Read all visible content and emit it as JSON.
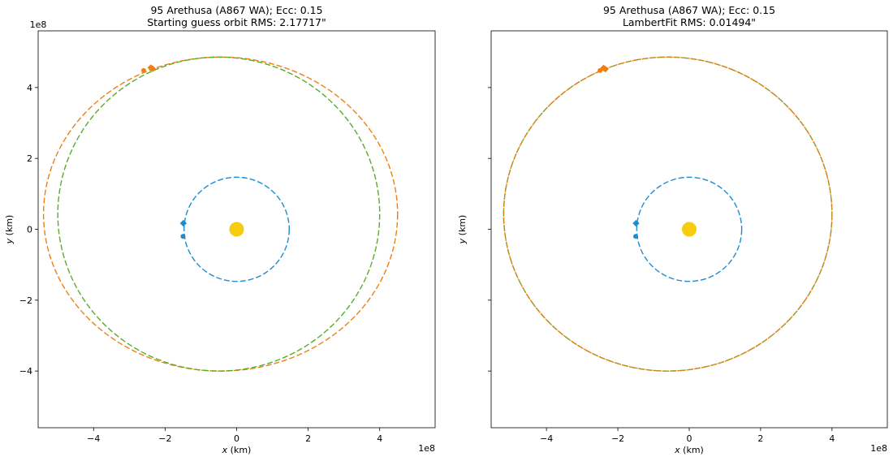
{
  "chart_data": [
    {
      "type": "scatter",
      "title": "95 Arethusa (A867 WA); Ecc: 0.15",
      "subtitle": "Starting guess orbit RMS: 2.17717\"",
      "xlabel_var": "x",
      "xlabel_unit": " (km)",
      "ylabel_var": "y",
      "ylabel_unit": " (km)",
      "xlim": [
        -5.55,
        5.55
      ],
      "ylim": [
        -5.6,
        5.6
      ],
      "offset_text": "1e8",
      "xticks": [
        -4,
        -2,
        0,
        2,
        4
      ],
      "yticks": [
        -4,
        -2,
        0,
        2,
        4
      ],
      "xtick_labels": [
        "−4",
        "−2",
        "0",
        "2",
        "4"
      ],
      "ytick_labels": [
        "−4",
        "−2",
        "0",
        "2",
        "4"
      ],
      "show_ytick_labels": true,
      "grid": false,
      "orbits": [
        {
          "center": [
            0.0,
            0.0
          ],
          "rx": 1.47,
          "ry": 1.47,
          "color": "#1f8bd0",
          "dash": "7,3"
        },
        {
          "center": [
            -0.45,
            0.43
          ],
          "rx": 4.95,
          "ry": 4.43,
          "color": "#f07f13",
          "dash": "7,3"
        },
        {
          "center": [
            -0.5,
            0.43
          ],
          "rx": 4.5,
          "ry": 4.43,
          "color": "#5aac2b",
          "dash": "7,3"
        }
      ],
      "sun": {
        "x": 0.0,
        "y": 0.0,
        "color": "#f7cc0e"
      },
      "markers": [
        {
          "x": -1.49,
          "y": 0.17,
          "shape": "diamond",
          "color": "#1f8bd0"
        },
        {
          "x": -1.5,
          "y": -0.2,
          "shape": "circle",
          "color": "#1f8bd0"
        },
        {
          "x": -2.6,
          "y": 4.48,
          "shape": "circle",
          "color": "#f07f13"
        },
        {
          "x": -2.4,
          "y": 4.56,
          "shape": "diamond",
          "color": "#f07f13"
        },
        {
          "x": -2.35,
          "y": 4.53,
          "shape": "diamond",
          "color": "#f07f13"
        }
      ]
    },
    {
      "type": "scatter",
      "title": "95 Arethusa (A867 WA); Ecc: 0.15",
      "subtitle": "LambertFit RMS: 0.01494\"",
      "xlabel_var": "x",
      "xlabel_unit": " (km)",
      "ylabel_var": "y",
      "ylabel_unit": " (km)",
      "xlim": [
        -5.55,
        5.55
      ],
      "ylim": [
        -5.6,
        5.6
      ],
      "offset_text": "1e8",
      "xticks": [
        -4,
        -2,
        0,
        2,
        4
      ],
      "yticks": [
        -4,
        -2,
        0,
        2,
        4
      ],
      "xtick_labels": [
        "−4",
        "−2",
        "0",
        "2",
        "4"
      ],
      "ytick_labels": [],
      "show_ytick_labels": false,
      "grid": false,
      "orbits": [
        {
          "center": [
            0.0,
            0.0
          ],
          "rx": 1.47,
          "ry": 1.47,
          "color": "#1f8bd0",
          "dash": "7,3"
        },
        {
          "center": [
            -0.6,
            0.43
          ],
          "rx": 4.6,
          "ry": 4.43,
          "color": "#5aac2b",
          "dash": "7,3"
        },
        {
          "center": [
            -0.6,
            0.43
          ],
          "rx": 4.6,
          "ry": 4.43,
          "color": "#f07f13",
          "dash": "2,1"
        }
      ],
      "sun": {
        "x": 0.0,
        "y": 0.0,
        "color": "#f7cc0e"
      },
      "markers": [
        {
          "x": -1.49,
          "y": 0.17,
          "shape": "diamond",
          "color": "#1f8bd0"
        },
        {
          "x": -1.5,
          "y": -0.2,
          "shape": "circle",
          "color": "#1f8bd0"
        },
        {
          "x": -2.5,
          "y": 4.48,
          "shape": "circle",
          "color": "#f07f13"
        },
        {
          "x": -2.4,
          "y": 4.55,
          "shape": "diamond",
          "color": "#f07f13"
        },
        {
          "x": -2.35,
          "y": 4.52,
          "shape": "diamond",
          "color": "#f07f13"
        }
      ]
    }
  ]
}
